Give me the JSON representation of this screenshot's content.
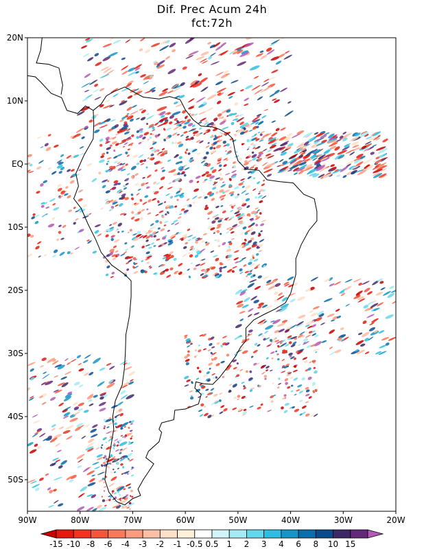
{
  "title_line1": "Dif. Prec Acum 24h",
  "title_line2": "fct:72h",
  "map": {
    "lon_range": [
      -90,
      -20
    ],
    "lat_range": [
      -55,
      20
    ],
    "lat_ticks": [
      "20N",
      "10N",
      "EQ",
      "10S",
      "20S",
      "30S",
      "40S",
      "50S"
    ],
    "lon_ticks": [
      "90W",
      "80W",
      "70W",
      "60W",
      "50W",
      "40W",
      "30W",
      "20W"
    ]
  },
  "colorbar": {
    "labels": [
      "-15",
      "-10",
      "-8",
      "-6",
      "-4",
      "-3",
      "-2",
      "-1",
      "-0.5",
      "0.5",
      "1",
      "2",
      "3",
      "4",
      "6",
      "8",
      "10",
      "15"
    ],
    "colors": [
      "#c80000",
      "#e41a0e",
      "#f0321e",
      "#f5553a",
      "#f87a5a",
      "#fa9c80",
      "#fcbea4",
      "#fde0c8",
      "#fff0dc",
      "#ffffff",
      "#d2f5fa",
      "#a5ebf5",
      "#64d7eb",
      "#2dbee1",
      "#1696c8",
      "#0a6eaa",
      "#0a4b8c",
      "#3c2864",
      "#64287a",
      "#b45ab4"
    ]
  },
  "legend_colors": {
    "negative": "#e41a0e",
    "positive": "#1696c8",
    "extreme": "#64287a",
    "coastline": "#000000"
  }
}
